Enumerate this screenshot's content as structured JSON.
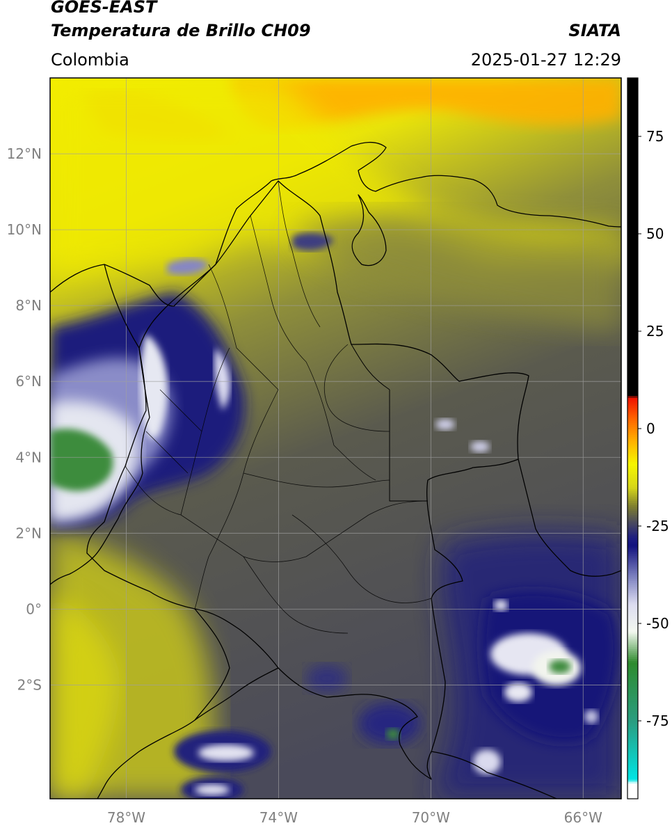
{
  "header": {
    "satellite": "GOES-EAST",
    "product": "Temperatura de Brillo CH09",
    "region": "Colombia",
    "agency": "SIATA",
    "datetime": "2025-01-27 12:29"
  },
  "map": {
    "lon_range": [
      -80,
      -65
    ],
    "lat_range": [
      -5,
      14
    ],
    "lat_ticks": [
      {
        "value": 12,
        "label": "12°N"
      },
      {
        "value": 10,
        "label": "10°N"
      },
      {
        "value": 8,
        "label": "8°N"
      },
      {
        "value": 6,
        "label": "6°N"
      },
      {
        "value": 4,
        "label": "4°N"
      },
      {
        "value": 2,
        "label": "2°N"
      },
      {
        "value": 0,
        "label": "0°"
      },
      {
        "value": -2,
        "label": "2°S"
      }
    ],
    "lon_ticks": [
      {
        "value": -78,
        "label": "78°W"
      },
      {
        "value": -74,
        "label": "74°W"
      },
      {
        "value": -70,
        "label": "70°W"
      },
      {
        "value": -66,
        "label": "66°W"
      }
    ],
    "grid": true
  },
  "colorbar": {
    "range": [
      -95,
      90
    ],
    "ticks": [
      {
        "value": 75,
        "label": "75"
      },
      {
        "value": 50,
        "label": "50"
      },
      {
        "value": 25,
        "label": "25"
      },
      {
        "value": 0,
        "label": "0"
      },
      {
        "value": -25,
        "label": "-25"
      },
      {
        "value": -50,
        "label": "-50"
      },
      {
        "value": -75,
        "label": "-75"
      }
    ],
    "stops": [
      {
        "value": -95,
        "color": "#ffffff"
      },
      {
        "value": -91,
        "color": "#ffffff"
      },
      {
        "value": -90,
        "color": "#00e5e5"
      },
      {
        "value": -75,
        "color": "#2a9d80"
      },
      {
        "value": -60,
        "color": "#2e8b2e"
      },
      {
        "value": -52,
        "color": "#f4f8f0"
      },
      {
        "value": -45,
        "color": "#dcdcf0"
      },
      {
        "value": -38,
        "color": "#7e82c0"
      },
      {
        "value": -30,
        "color": "#13137f"
      },
      {
        "value": -28,
        "color": "#1d1d82"
      },
      {
        "value": -24,
        "color": "#4a4a5e"
      },
      {
        "value": -20,
        "color": "#7d7d30"
      },
      {
        "value": -15,
        "color": "#d6d61a"
      },
      {
        "value": -9,
        "color": "#f6f600"
      },
      {
        "value": -3,
        "color": "#ffaf00"
      },
      {
        "value": 3,
        "color": "#ff6000"
      },
      {
        "value": 8,
        "color": "#ee1100"
      },
      {
        "value": 8.5,
        "color": "#000000"
      },
      {
        "value": 90,
        "color": "#000000"
      }
    ]
  },
  "colors": {
    "yellow": "#f5ef00",
    "orange": "#ffb000",
    "olive": "#8a8a3c",
    "dark_olive": "#5a5a4e",
    "navy": "#1e1e7e",
    "white_cloud": "#e8e8f4",
    "green_cloud": "#3a8a3a",
    "grid": "#a0a0a0",
    "border": "#000000"
  }
}
